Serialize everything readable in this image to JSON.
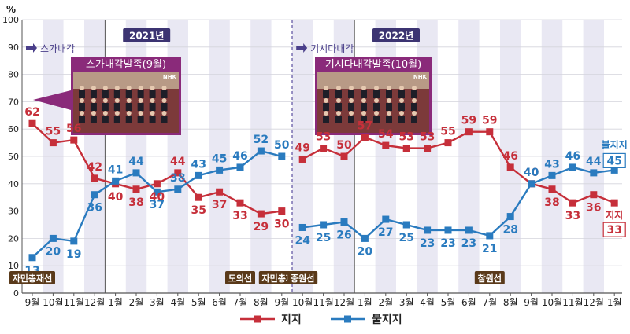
{
  "chart_data": {
    "type": "line",
    "yunit": "%",
    "ylim": [
      0,
      100
    ],
    "yticks": [
      0,
      10,
      20,
      30,
      40,
      50,
      60,
      70,
      80,
      90,
      100
    ],
    "categories": [
      "9월",
      "10월",
      "11월",
      "12월",
      "1월",
      "2월",
      "3월",
      "4월",
      "5월",
      "6월",
      "7월",
      "8월",
      "9월",
      "10월",
      "11월",
      "12월",
      "1월",
      "2월",
      "3월",
      "4월",
      "5월",
      "6월",
      "7월",
      "8월",
      "9월",
      "10월",
      "11월",
      "12월",
      "1월"
    ],
    "series": [
      {
        "name": "지지",
        "color": "#c62f3a",
        "segments": [
          {
            "start": 0,
            "values": [
              62,
              55,
              56,
              42,
              40,
              38,
              40,
              44,
              35,
              37,
              33,
              29,
              30
            ]
          },
          {
            "start": 13,
            "values": [
              49,
              53,
              50,
              57,
              54,
              53,
              53,
              55,
              59,
              59,
              46,
              40,
              38,
              33,
              36,
              33
            ]
          }
        ]
      },
      {
        "name": "불지지",
        "color": "#2a7bbf",
        "segments": [
          {
            "start": 0,
            "values": [
              13,
              20,
              19,
              36,
              41,
              44,
              37,
              38,
              43,
              45,
              46,
              52,
              50
            ]
          },
          {
            "start": 13,
            "values": [
              24,
              25,
              26,
              20,
              27,
              25,
              23,
              23,
              23,
              21,
              28,
              40,
              43,
              46,
              44,
              45
            ]
          }
        ]
      }
    ],
    "year_labels": [
      {
        "text": "2021년",
        "index": 5.5
      },
      {
        "text": "2022년",
        "index": 17.5
      }
    ],
    "cabinet_notes": [
      {
        "text": "스가내각",
        "index": 0
      },
      {
        "text": "기시다내각",
        "index": 13
      }
    ],
    "photo_titles": [
      "스가내각발족(9월)",
      "기시다내각발족(10월)"
    ],
    "events": [
      {
        "text": "자민총재선",
        "index": 0
      },
      {
        "text": "도의선",
        "index": 10
      },
      {
        "text": "자민총재선",
        "index": 12
      },
      {
        "text": "중원선",
        "index": 13
      },
      {
        "text": "참원선",
        "index": 22
      }
    ],
    "end_labels": {
      "support": "지지",
      "nonsupport": "불지지"
    },
    "legend": [
      "지지",
      "불지지"
    ],
    "watermark": "NHK"
  }
}
